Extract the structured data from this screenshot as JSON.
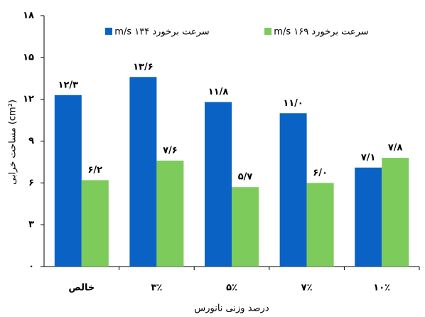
{
  "chart_data": {
    "type": "bar",
    "ylabel": "مساحت خرابی (cm²)",
    "xlabel": "درصد وزنی نانورس",
    "categories": [
      "خالص",
      "۳٪",
      "۵٪",
      "۷٪",
      "۱۰٪"
    ],
    "series": [
      {
        "name": "سرعت برخورد ۱۳۴ m/s",
        "color": "#0a63c4",
        "values": [
          12.3,
          13.6,
          11.8,
          11.0,
          7.1
        ],
        "value_labels": [
          "۱۲/۳",
          "۱۳/۶",
          "۱۱/۸",
          "۱۱/۰",
          "۷/۱"
        ]
      },
      {
        "name": "سرعت برخورد ۱۶۹ m/s",
        "color": "#7dcb5a",
        "values": [
          6.2,
          7.6,
          5.7,
          6.0,
          7.8
        ],
        "value_labels": [
          "۶/۲",
          "۷/۶",
          "۵/۷",
          "۶/۰",
          "۷/۸"
        ]
      }
    ],
    "ylim": [
      0,
      18
    ],
    "yticks": [
      {
        "value": 0,
        "label": "۰"
      },
      {
        "value": 3,
        "label": "۳"
      },
      {
        "value": 6,
        "label": "۶"
      },
      {
        "value": 9,
        "label": "۹"
      },
      {
        "value": 12,
        "label": "۱۲"
      },
      {
        "value": 15,
        "label": "۱۵"
      },
      {
        "value": 18,
        "label": "۱۸"
      }
    ],
    "grid": false
  }
}
